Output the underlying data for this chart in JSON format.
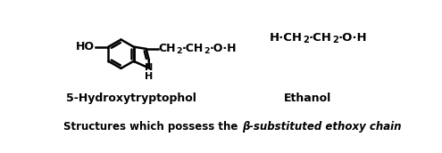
{
  "fig_width": 4.95,
  "fig_height": 1.72,
  "dpi": 100,
  "bg_color": "#ffffff",
  "caption_normal": "Structures which possess the ",
  "caption_bold_italic": "β-substituted ethoxy chain",
  "label1": "5-Hydroxytryptophol",
  "label2": "Ethanol",
  "ho_label": "HO",
  "n_label": "N",
  "h_label": "H",
  "chain1": "CH",
  "chain2": "CH",
  "ethanol_formula": "H·CH",
  "sub2": "2",
  "dot_oh": "·O·H"
}
